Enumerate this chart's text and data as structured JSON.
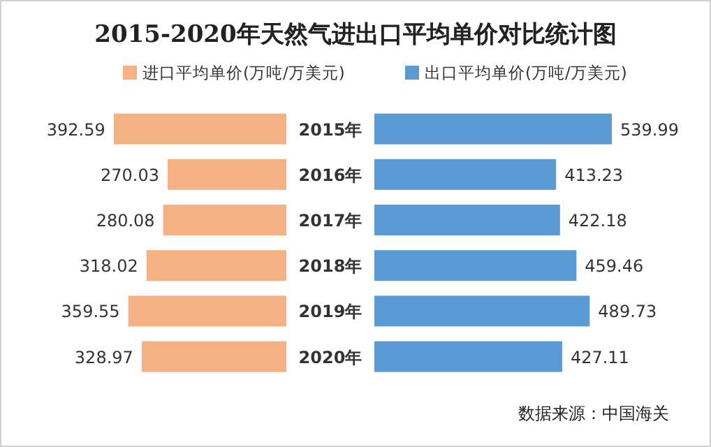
{
  "chart_data": [
    {
      "type": "bar",
      "orientation": "horizontal",
      "title": "2015-2020年天然气进出口平均单价对比统计图",
      "categories": [
        "2015年",
        "2016年",
        "2017年",
        "2018年",
        "2019年",
        "2020年"
      ],
      "series": [
        {
          "name": "进口平均单价(万吨/万美元)",
          "color": "#f4b183",
          "values": [
            392.59,
            270.03,
            280.08,
            318.02,
            359.55,
            328.97
          ]
        }
      ],
      "data_labels": true,
      "legend": "top"
    },
    {
      "type": "bar",
      "orientation": "horizontal",
      "categories": [
        null,
        null,
        null,
        null,
        null,
        null
      ],
      "series": [
        {
          "name": "出口平均单价(万吨/万美元)",
          "color": "#5b9bd5",
          "values": [
            539.99,
            413.23,
            422.18,
            459.46,
            489.73,
            427.11
          ]
        }
      ],
      "data_labels": true,
      "legend": "top",
      "annotations": [
        "数据来源：中国海关"
      ]
    }
  ]
}
